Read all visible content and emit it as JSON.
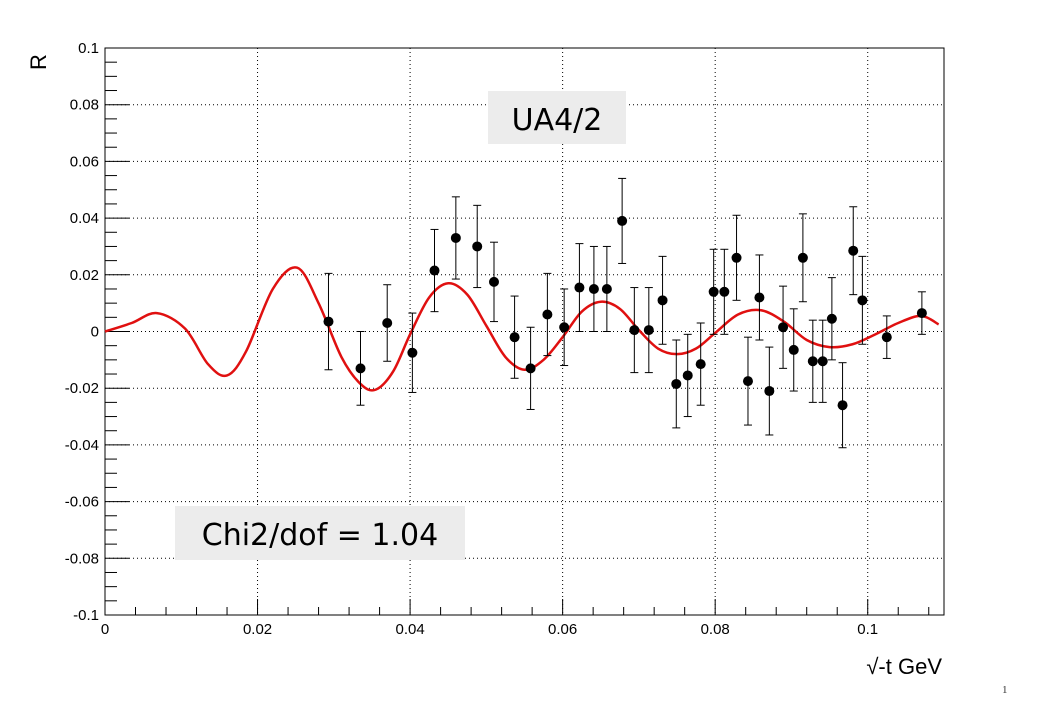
{
  "page_number": "1",
  "chart_data": {
    "type": "scatter",
    "xlabel": "√-t GeV",
    "ylabel": "R",
    "xlim": [
      0,
      0.11
    ],
    "ylim": [
      -0.1,
      0.1
    ],
    "xticks": [
      0,
      0.02,
      0.04,
      0.06,
      0.08,
      0.1
    ],
    "xtick_labels": [
      "0",
      "0.02",
      "0.04",
      "0.06",
      "0.08",
      "0.1"
    ],
    "yticks": [
      -0.1,
      -0.08,
      -0.06,
      -0.04,
      -0.02,
      0,
      0.02,
      0.04,
      0.06,
      0.08,
      0.1
    ],
    "ytick_labels": [
      "-0.1",
      "-0.08",
      "-0.06",
      "-0.04",
      "-0.02",
      "0",
      "0.02",
      "0.04",
      "0.06",
      "0.08",
      "0.1"
    ],
    "grid": true,
    "annotations": [
      "UA4/2",
      "Chi2/dof = 1.04"
    ],
    "points": [
      {
        "x": 0.0293,
        "y": 0.0035,
        "err": 0.017
      },
      {
        "x": 0.0335,
        "y": -0.013,
        "err": 0.013
      },
      {
        "x": 0.037,
        "y": 0.003,
        "err": 0.0135
      },
      {
        "x": 0.0403,
        "y": -0.0075,
        "err": 0.014
      },
      {
        "x": 0.0432,
        "y": 0.0215,
        "err": 0.0145
      },
      {
        "x": 0.046,
        "y": 0.033,
        "err": 0.0145
      },
      {
        "x": 0.0488,
        "y": 0.03,
        "err": 0.0145
      },
      {
        "x": 0.051,
        "y": 0.0175,
        "err": 0.014
      },
      {
        "x": 0.0537,
        "y": -0.002,
        "err": 0.0145
      },
      {
        "x": 0.0558,
        "y": -0.013,
        "err": 0.0145
      },
      {
        "x": 0.058,
        "y": 0.006,
        "err": 0.0145
      },
      {
        "x": 0.0602,
        "y": 0.0015,
        "err": 0.0135
      },
      {
        "x": 0.0622,
        "y": 0.0155,
        "err": 0.0155
      },
      {
        "x": 0.0641,
        "y": 0.015,
        "err": 0.015
      },
      {
        "x": 0.0658,
        "y": 0.015,
        "err": 0.015
      },
      {
        "x": 0.0678,
        "y": 0.039,
        "err": 0.015
      },
      {
        "x": 0.0694,
        "y": 0.0005,
        "err": 0.015
      },
      {
        "x": 0.0713,
        "y": 0.0005,
        "err": 0.015
      },
      {
        "x": 0.0731,
        "y": 0.011,
        "err": 0.0155
      },
      {
        "x": 0.0749,
        "y": -0.0185,
        "err": 0.0155
      },
      {
        "x": 0.0764,
        "y": -0.0155,
        "err": 0.0145
      },
      {
        "x": 0.0781,
        "y": -0.0115,
        "err": 0.0145
      },
      {
        "x": 0.0798,
        "y": 0.014,
        "err": 0.015
      },
      {
        "x": 0.0812,
        "y": 0.014,
        "err": 0.015
      },
      {
        "x": 0.0828,
        "y": 0.026,
        "err": 0.015
      },
      {
        "x": 0.0843,
        "y": -0.0175,
        "err": 0.0155
      },
      {
        "x": 0.0858,
        "y": 0.012,
        "err": 0.015
      },
      {
        "x": 0.0871,
        "y": -0.021,
        "err": 0.0155
      },
      {
        "x": 0.0889,
        "y": 0.0015,
        "err": 0.0145
      },
      {
        "x": 0.0903,
        "y": -0.0065,
        "err": 0.0145
      },
      {
        "x": 0.0915,
        "y": 0.026,
        "err": 0.0155
      },
      {
        "x": 0.0928,
        "y": -0.0105,
        "err": 0.0145
      },
      {
        "x": 0.0941,
        "y": -0.0105,
        "err": 0.0145
      },
      {
        "x": 0.0953,
        "y": 0.0045,
        "err": 0.0145
      },
      {
        "x": 0.0967,
        "y": -0.026,
        "err": 0.015
      },
      {
        "x": 0.0981,
        "y": 0.0285,
        "err": 0.0155
      },
      {
        "x": 0.0993,
        "y": 0.011,
        "err": 0.0155
      },
      {
        "x": 0.1025,
        "y": -0.002,
        "err": 0.0075
      },
      {
        "x": 0.1071,
        "y": 0.0065,
        "err": 0.0075
      }
    ],
    "fit_curve": {
      "color": "#e01010",
      "points": [
        [
          0,
          0
        ],
        [
          0.0035,
          0.003
        ],
        [
          0.0068,
          0.0065
        ],
        [
          0.0105,
          0.001
        ],
        [
          0.0135,
          -0.0115
        ],
        [
          0.016,
          -0.0155
        ],
        [
          0.0185,
          -0.007
        ],
        [
          0.022,
          0.015
        ],
        [
          0.0252,
          0.0225
        ],
        [
          0.028,
          0.01
        ],
        [
          0.031,
          -0.009
        ],
        [
          0.0335,
          -0.0185
        ],
        [
          0.0355,
          -0.0205
        ],
        [
          0.0378,
          -0.014
        ],
        [
          0.04,
          -0.001
        ],
        [
          0.0425,
          0.012
        ],
        [
          0.045,
          0.017
        ],
        [
          0.0475,
          0.013
        ],
        [
          0.05,
          0.002
        ],
        [
          0.0525,
          -0.009
        ],
        [
          0.055,
          -0.0135
        ],
        [
          0.0575,
          -0.01
        ],
        [
          0.06,
          -0.002
        ],
        [
          0.0625,
          0.007
        ],
        [
          0.065,
          0.0105
        ],
        [
          0.0675,
          0.008
        ],
        [
          0.07,
          0.0005
        ],
        [
          0.0725,
          -0.006
        ],
        [
          0.075,
          -0.008
        ],
        [
          0.0775,
          -0.006
        ],
        [
          0.08,
          -0.0005
        ],
        [
          0.083,
          0.006
        ],
        [
          0.086,
          0.0075
        ],
        [
          0.089,
          0.0035
        ],
        [
          0.092,
          -0.003
        ],
        [
          0.095,
          -0.0055
        ],
        [
          0.098,
          -0.0045
        ],
        [
          0.101,
          -0.001
        ],
        [
          0.104,
          0.003
        ],
        [
          0.107,
          0.0055
        ],
        [
          0.1093,
          0.0025
        ]
      ]
    },
    "colors": {
      "points": "#000000",
      "fit": "#e01010",
      "note_background": "#ececec"
    }
  }
}
